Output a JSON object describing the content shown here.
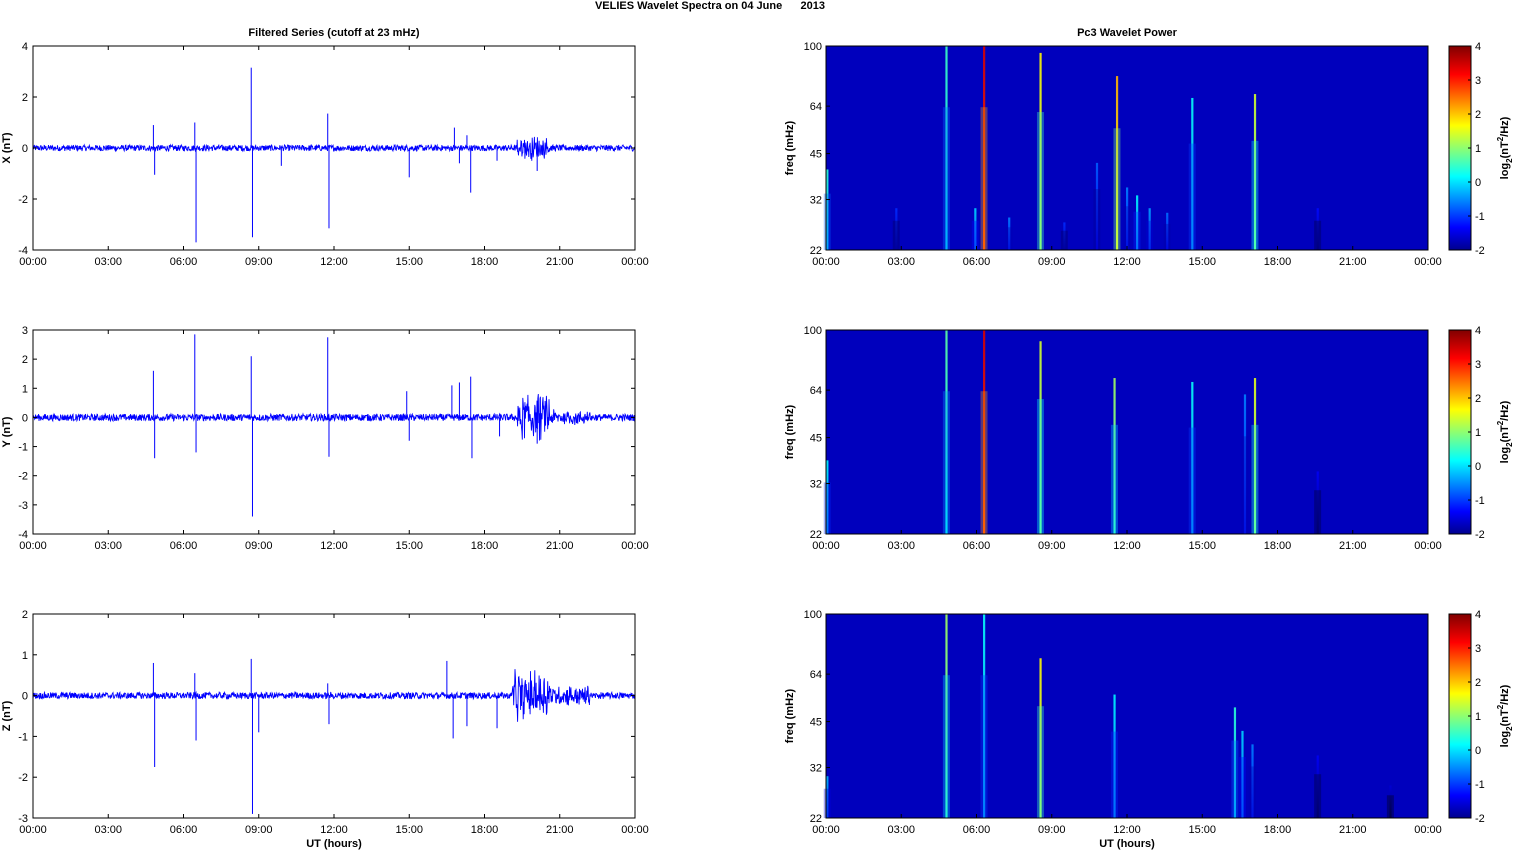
{
  "figure": {
    "title": "VELIES Wavelet Spectra on 04 June      2013",
    "left_title": "Filtered Series (cutoff at 23 mHz)",
    "right_title": "Pc3 Wavelet Power",
    "xlabel": "UT (hours)",
    "freq_label": "freq (mHz)",
    "cbar_label_main": "log",
    "cbar_label_sub": "2",
    "cbar_label_rest": "(nT",
    "cbar_label_sup": "2",
    "cbar_label_end": "/Hz)"
  },
  "chart_data": [
    {
      "type": "line",
      "ylabel": "X (nT)",
      "ylim": [
        -4,
        4
      ],
      "yticks": [
        -4,
        -2,
        0,
        2,
        4
      ],
      "xticks": [
        "00:00",
        "03:00",
        "06:00",
        "09:00",
        "12:00",
        "15:00",
        "18:00",
        "21:00",
        "00:00"
      ],
      "x_unit": "hours UT",
      "xlim": [
        0,
        24
      ],
      "color": "#0000ff",
      "noise_amplitude": 0.12,
      "spikes": [
        {
          "x": 4.8,
          "y": 0.9
        },
        {
          "x": 4.85,
          "y": -1.05
        },
        {
          "x": 6.45,
          "y": 1.0
        },
        {
          "x": 6.5,
          "y": -3.7
        },
        {
          "x": 8.7,
          "y": 3.15
        },
        {
          "x": 8.75,
          "y": -3.5
        },
        {
          "x": 11.75,
          "y": 1.35
        },
        {
          "x": 11.8,
          "y": -3.15
        },
        {
          "x": 9.9,
          "y": -0.7
        },
        {
          "x": 15.0,
          "y": -1.15
        },
        {
          "x": 16.8,
          "y": 0.8
        },
        {
          "x": 17.0,
          "y": -0.6
        },
        {
          "x": 17.3,
          "y": 0.5
        },
        {
          "x": 17.45,
          "y": -1.75
        },
        {
          "x": 18.5,
          "y": -0.5
        },
        {
          "x": 20.1,
          "y": -0.9
        }
      ],
      "bursts": [
        {
          "start": 19.3,
          "end": 20.6,
          "amplitude": 0.55
        }
      ]
    },
    {
      "type": "line",
      "ylabel": "Y (nT)",
      "ylim": [
        -4,
        3
      ],
      "yticks": [
        -4,
        -3,
        -2,
        -1,
        0,
        1,
        2,
        3
      ],
      "xticks": [
        "00:00",
        "03:00",
        "06:00",
        "09:00",
        "12:00",
        "15:00",
        "18:00",
        "21:00",
        "00:00"
      ],
      "x_unit": "hours UT",
      "xlim": [
        0,
        24
      ],
      "color": "#0000ff",
      "noise_amplitude": 0.12,
      "spikes": [
        {
          "x": 4.8,
          "y": 1.6
        },
        {
          "x": 4.85,
          "y": -1.4
        },
        {
          "x": 6.45,
          "y": 2.85
        },
        {
          "x": 6.5,
          "y": -1.2
        },
        {
          "x": 8.7,
          "y": 2.1
        },
        {
          "x": 8.75,
          "y": -3.4
        },
        {
          "x": 11.75,
          "y": 2.75
        },
        {
          "x": 11.8,
          "y": -1.35
        },
        {
          "x": 14.9,
          "y": 0.9
        },
        {
          "x": 15.0,
          "y": -0.8
        },
        {
          "x": 16.7,
          "y": 1.1
        },
        {
          "x": 17.0,
          "y": 1.2
        },
        {
          "x": 17.45,
          "y": 1.4
        },
        {
          "x": 17.5,
          "y": -1.4
        },
        {
          "x": 18.6,
          "y": -0.65
        },
        {
          "x": 20.1,
          "y": -0.9
        }
      ],
      "bursts": [
        {
          "start": 19.3,
          "end": 20.6,
          "amplitude": 0.9
        },
        {
          "start": 20.6,
          "end": 22.2,
          "amplitude": 0.3
        }
      ]
    },
    {
      "type": "line",
      "ylabel": "Z (nT)",
      "ylim": [
        -3,
        2
      ],
      "yticks": [
        -3,
        -2,
        -1,
        0,
        1,
        2
      ],
      "xticks": [
        "00:00",
        "03:00",
        "06:00",
        "09:00",
        "12:00",
        "15:00",
        "18:00",
        "21:00",
        "00:00"
      ],
      "x_unit": "hours UT",
      "xlim": [
        0,
        24
      ],
      "color": "#0000ff",
      "noise_amplitude": 0.08,
      "spikes": [
        {
          "x": 4.8,
          "y": 0.8
        },
        {
          "x": 4.85,
          "y": -1.75
        },
        {
          "x": 6.45,
          "y": 0.55
        },
        {
          "x": 6.5,
          "y": -1.1
        },
        {
          "x": 8.7,
          "y": 0.9
        },
        {
          "x": 8.75,
          "y": -2.9
        },
        {
          "x": 9.0,
          "y": -0.9
        },
        {
          "x": 11.75,
          "y": 0.3
        },
        {
          "x": 11.8,
          "y": -0.7
        },
        {
          "x": 16.5,
          "y": 0.85
        },
        {
          "x": 16.75,
          "y": -1.05
        },
        {
          "x": 17.3,
          "y": -0.75
        },
        {
          "x": 18.5,
          "y": -0.8
        }
      ],
      "bursts": [
        {
          "start": 19.1,
          "end": 20.6,
          "amplitude": 0.7
        },
        {
          "start": 20.6,
          "end": 22.2,
          "amplitude": 0.3
        }
      ]
    },
    {
      "type": "heatmap",
      "ylabel": "freq (mHz)",
      "yticks": [
        22,
        32,
        45,
        64,
        100
      ],
      "ylim": [
        22,
        100
      ],
      "xticks": [
        "00:00",
        "03:00",
        "06:00",
        "09:00",
        "12:00",
        "15:00",
        "18:00",
        "21:00",
        "00:00"
      ],
      "xlim": [
        0,
        24
      ],
      "colorbar": {
        "label": "log2(nT2/Hz)",
        "ticks": [
          -2,
          -1,
          0,
          1,
          2,
          3,
          4
        ],
        "range": [
          -2,
          4
        ],
        "colormap": "jet"
      },
      "background_level": -2,
      "streaks": [
        {
          "x": 0.05,
          "top": 40,
          "level": 0.5
        },
        {
          "x": 2.8,
          "top": 30,
          "level": -1.0
        },
        {
          "x": 4.8,
          "top": 100,
          "level": 0.6
        },
        {
          "x": 5.95,
          "top": 30,
          "level": 0.0
        },
        {
          "x": 6.3,
          "top": 100,
          "level": 3.5
        },
        {
          "x": 7.3,
          "top": 28,
          "level": -0.5
        },
        {
          "x": 8.55,
          "top": 95,
          "level": 1.8
        },
        {
          "x": 9.5,
          "top": 27,
          "level": -1.0
        },
        {
          "x": 10.8,
          "top": 42,
          "level": -0.7
        },
        {
          "x": 11.6,
          "top": 80,
          "level": 2.2
        },
        {
          "x": 12.0,
          "top": 35,
          "level": -0.5
        },
        {
          "x": 12.4,
          "top": 33,
          "level": 0.2
        },
        {
          "x": 12.9,
          "top": 30,
          "level": -0.3
        },
        {
          "x": 13.6,
          "top": 29,
          "level": -0.6
        },
        {
          "x": 14.6,
          "top": 68,
          "level": 0.3
        },
        {
          "x": 17.1,
          "top": 70,
          "level": 1.5
        },
        {
          "x": 19.6,
          "top": 30,
          "level": -1.2
        }
      ]
    },
    {
      "type": "heatmap",
      "ylabel": "freq (mHz)",
      "yticks": [
        22,
        32,
        45,
        64,
        100
      ],
      "ylim": [
        22,
        100
      ],
      "xticks": [
        "00:00",
        "03:00",
        "06:00",
        "09:00",
        "12:00",
        "15:00",
        "18:00",
        "21:00",
        "00:00"
      ],
      "xlim": [
        0,
        24
      ],
      "colorbar": {
        "label": "log2(nT2/Hz)",
        "ticks": [
          -2,
          -1,
          0,
          1,
          2,
          3,
          4
        ],
        "range": [
          -2,
          4
        ],
        "colormap": "jet"
      },
      "background_level": -2,
      "streaks": [
        {
          "x": 0.05,
          "top": 38,
          "level": 0.2
        },
        {
          "x": 4.8,
          "top": 100,
          "level": 0.8
        },
        {
          "x": 6.3,
          "top": 100,
          "level": 3.5
        },
        {
          "x": 8.55,
          "top": 92,
          "level": 1.5
        },
        {
          "x": 11.5,
          "top": 70,
          "level": 1.2
        },
        {
          "x": 14.6,
          "top": 68,
          "level": 0.3
        },
        {
          "x": 16.7,
          "top": 62,
          "level": -0.5
        },
        {
          "x": 17.1,
          "top": 70,
          "level": 1.6
        },
        {
          "x": 19.6,
          "top": 35,
          "level": -1.3
        }
      ]
    },
    {
      "type": "heatmap",
      "ylabel": "freq (mHz)",
      "yticks": [
        22,
        32,
        45,
        64,
        100
      ],
      "ylim": [
        22,
        100
      ],
      "xticks": [
        "00:00",
        "03:00",
        "06:00",
        "09:00",
        "12:00",
        "15:00",
        "18:00",
        "21:00",
        "00:00"
      ],
      "xlim": [
        0,
        24
      ],
      "colorbar": {
        "label": "log2(nT2/Hz)",
        "ticks": [
          -2,
          -1,
          0,
          1,
          2,
          3,
          4
        ],
        "range": [
          -2,
          4
        ],
        "colormap": "jet"
      },
      "background_level": -2,
      "streaks": [
        {
          "x": 0.05,
          "top": 30,
          "level": -0.2
        },
        {
          "x": 4.8,
          "top": 100,
          "level": 1.2
        },
        {
          "x": 6.3,
          "top": 100,
          "level": 0.3
        },
        {
          "x": 8.55,
          "top": 72,
          "level": 1.8
        },
        {
          "x": 11.5,
          "top": 55,
          "level": 0.2
        },
        {
          "x": 16.3,
          "top": 50,
          "level": 0.5
        },
        {
          "x": 16.6,
          "top": 42,
          "level": 0.0
        },
        {
          "x": 17.0,
          "top": 38,
          "level": -0.5
        },
        {
          "x": 19.6,
          "top": 35,
          "level": -1.3
        },
        {
          "x": 22.5,
          "top": 28,
          "level": -1.5
        }
      ]
    }
  ]
}
